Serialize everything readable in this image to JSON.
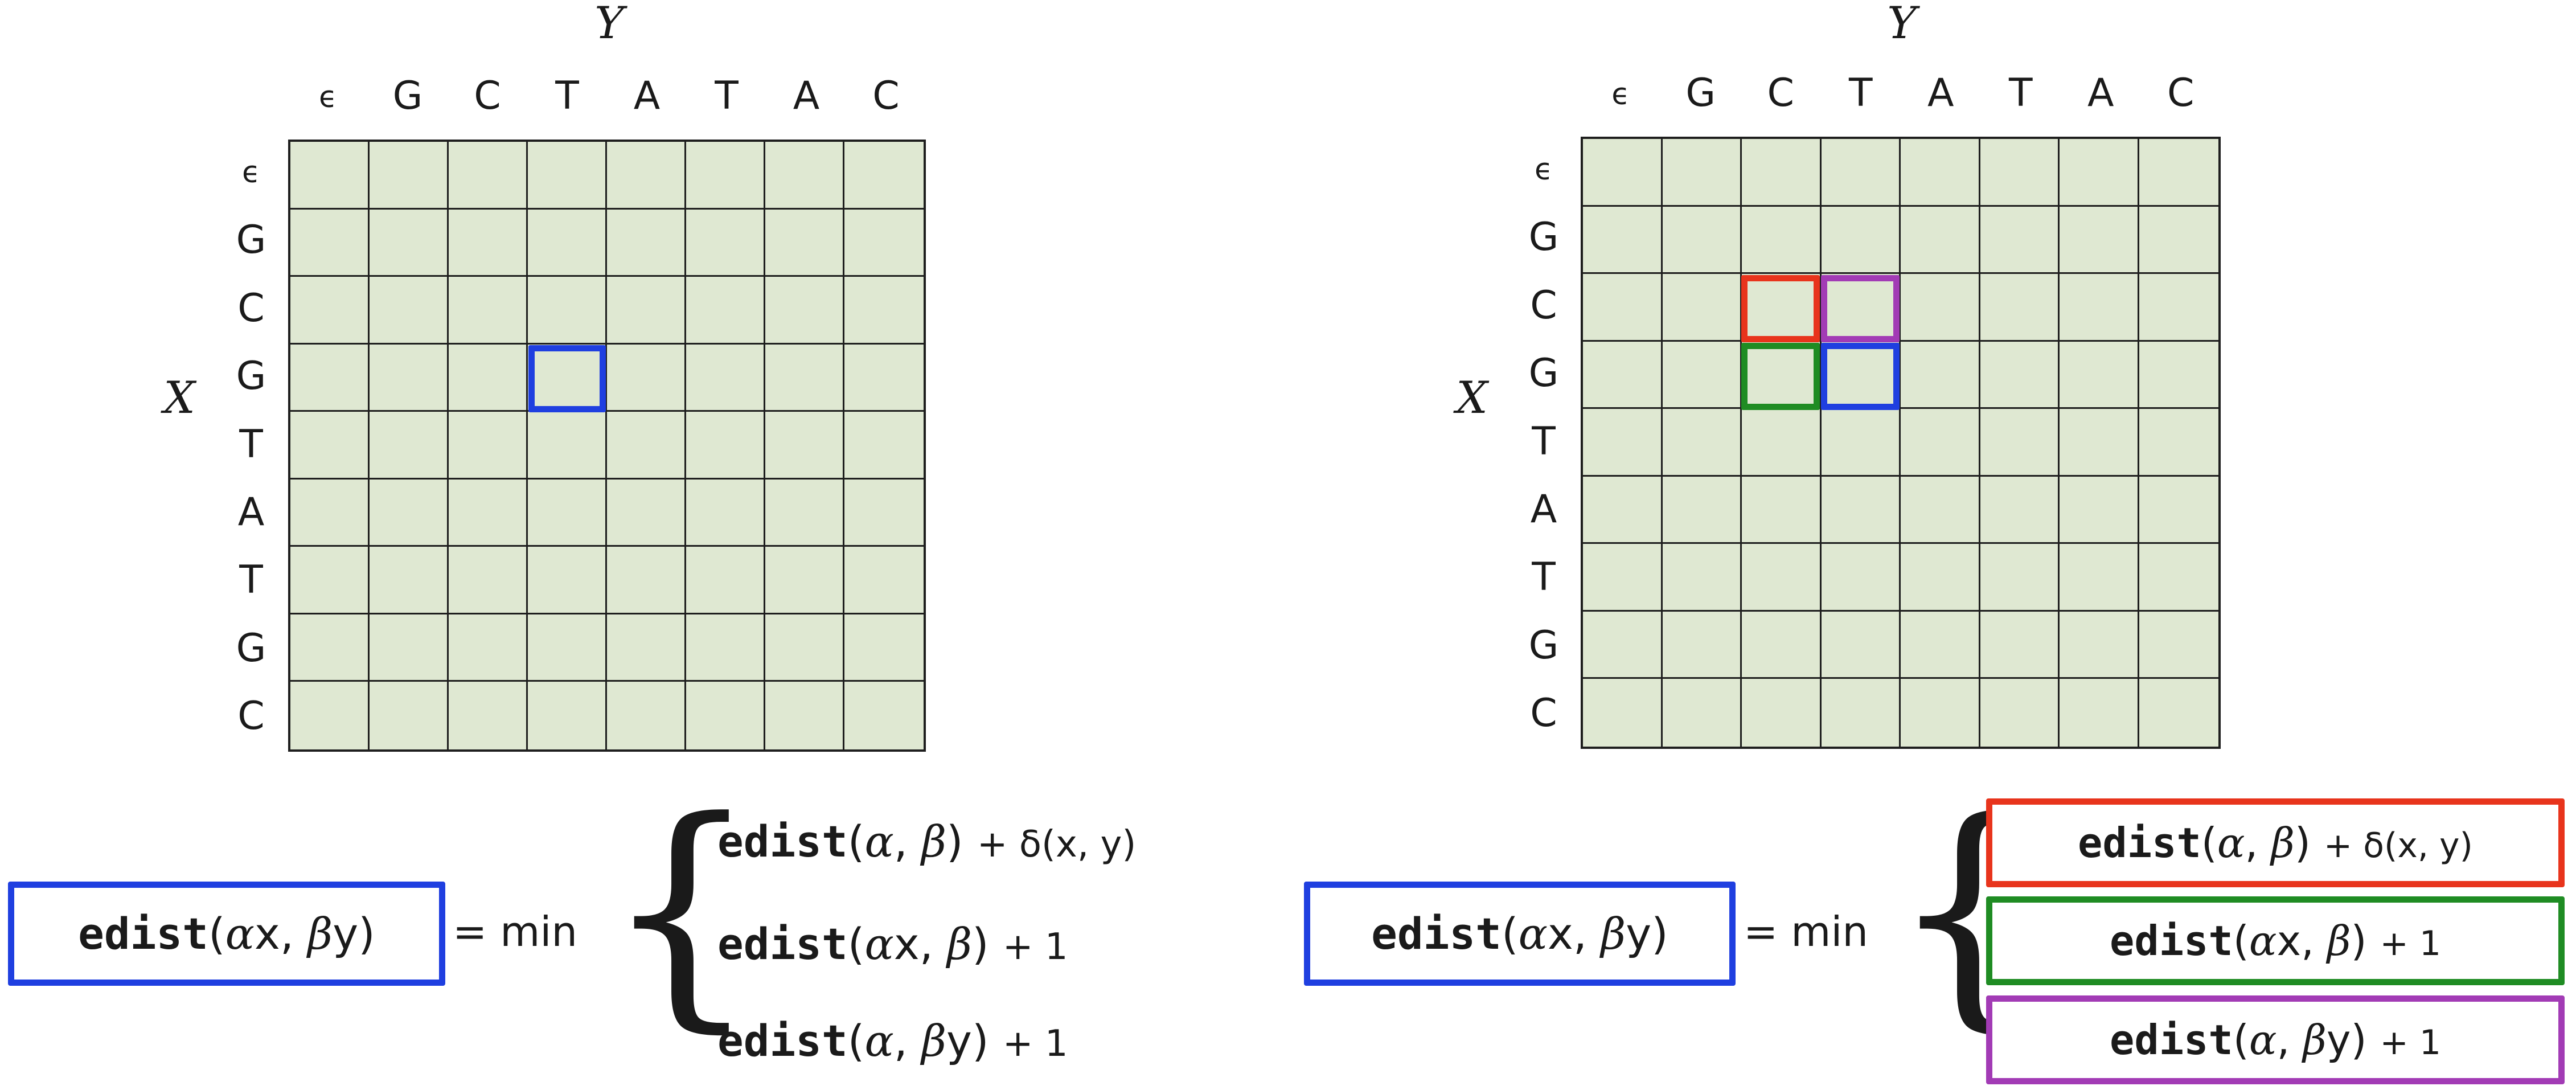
{
  "matrix": {
    "y_axis_title": "Y",
    "x_axis_title": "X",
    "columns": [
      "ϵ",
      "G",
      "C",
      "T",
      "A",
      "T",
      "A",
      "C"
    ],
    "rows": [
      "ϵ",
      "G",
      "C",
      "G",
      "T",
      "A",
      "T",
      "G",
      "C"
    ]
  },
  "colors": {
    "grid_fill": "#dfe8d2",
    "blue": "#1f3fe0",
    "red": "#e8341c",
    "purple": "#a23bb5",
    "green": "#1f8c23"
  },
  "formula": {
    "lhs_fn": "edist",
    "lhs_open": "(",
    "alpha": "α",
    "beta": "β",
    "x": "x",
    "y": "y",
    "comma": ",",
    "close": ")",
    "eq_min": "= min",
    "brace": "{",
    "plus_delta": "+ δ(x, y)",
    "plus_one": "+ 1"
  }
}
